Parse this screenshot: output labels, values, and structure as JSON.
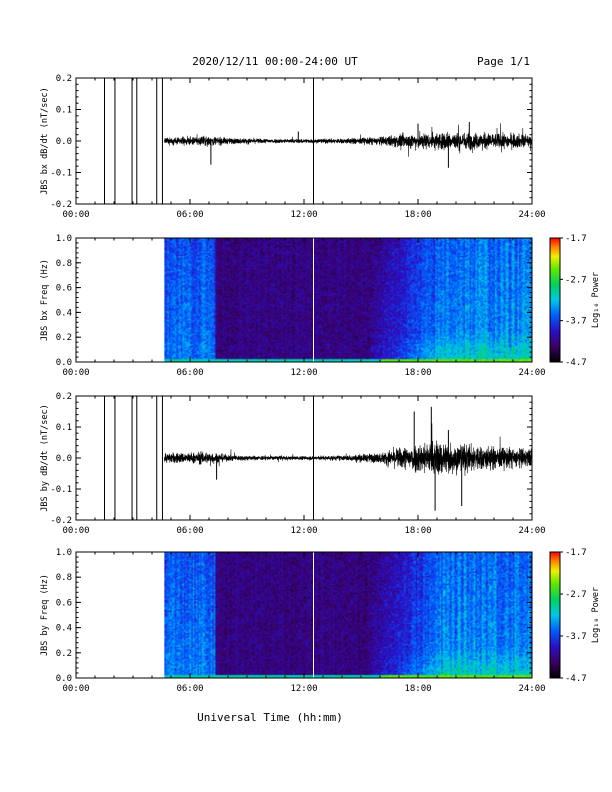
{
  "header": {
    "title": "2020/12/11  00:00-24:00 UT",
    "page": "Page 1/1"
  },
  "xlabel": "Universal Time (hh:mm)",
  "chart_data": [
    {
      "type": "line",
      "ylabel": "JBS bx dB/dt (nT/sec)",
      "xlim": [
        0,
        24
      ],
      "ylim": [
        -0.2,
        0.2
      ],
      "x_ticks": [
        "00:00",
        "06:00",
        "12:00",
        "18:00",
        "24:00"
      ],
      "y_ticks": [
        "0.2",
        "0.1",
        "0.0",
        "-0.1",
        "-0.2"
      ],
      "gaps_hours": [
        1.5,
        2.05,
        2.95,
        3.2,
        4.25,
        4.55,
        12.5
      ],
      "data_start_hour": 4.65,
      "envelope": {
        "hours": [
          4.65,
          6,
          7,
          8,
          10,
          12,
          14,
          16,
          17,
          18,
          19,
          20,
          22,
          23,
          24
        ],
        "amplitude": [
          0.012,
          0.015,
          0.02,
          0.012,
          0.009,
          0.008,
          0.01,
          0.016,
          0.025,
          0.03,
          0.035,
          0.035,
          0.03,
          0.028,
          0.025
        ]
      },
      "spikes": [
        {
          "hour": 7.1,
          "value": -0.075
        },
        {
          "hour": 11.7,
          "value": 0.03
        },
        {
          "hour": 18.0,
          "value": 0.055
        },
        {
          "hour": 19.6,
          "value": -0.085
        },
        {
          "hour": 20.7,
          "value": 0.06
        }
      ]
    },
    {
      "type": "heatmap",
      "ylabel": "JBS bx Freq (Hz)",
      "xlim": [
        0,
        24
      ],
      "ylim": [
        0,
        1
      ],
      "x_ticks": [
        "00:00",
        "06:00",
        "12:00",
        "18:00",
        "24:00"
      ],
      "y_ticks": [
        "1.0",
        "0.8",
        "0.6",
        "0.4",
        "0.2",
        "0.0"
      ],
      "data_start_hour": 4.65,
      "colorbar": {
        "label": "Log₁₀ Power",
        "ticks": [
          "-1.7",
          "-2.7",
          "-3.7",
          "-4.7"
        ],
        "range": [
          -4.7,
          -1.7
        ]
      }
    },
    {
      "type": "line",
      "ylabel": "JBS by dB/dt (nT/sec)",
      "xlim": [
        0,
        24
      ],
      "ylim": [
        -0.2,
        0.2
      ],
      "x_ticks": [
        "00:00",
        "06:00",
        "12:00",
        "18:00",
        "24:00"
      ],
      "y_ticks": [
        "0.2",
        "0.1",
        "0.0",
        "-0.1",
        "-0.2"
      ],
      "gaps_hours": [
        1.5,
        2.05,
        2.95,
        3.2,
        4.25,
        4.55,
        12.5
      ],
      "data_start_hour": 4.65,
      "envelope": {
        "hours": [
          4.65,
          6,
          7,
          8,
          10,
          12,
          14,
          16,
          17,
          18,
          19,
          20,
          22,
          23,
          24
        ],
        "amplitude": [
          0.02,
          0.022,
          0.025,
          0.012,
          0.008,
          0.008,
          0.01,
          0.02,
          0.04,
          0.06,
          0.07,
          0.06,
          0.045,
          0.04,
          0.035
        ]
      },
      "spikes": [
        {
          "hour": 7.4,
          "value": -0.07
        },
        {
          "hour": 17.8,
          "value": 0.15
        },
        {
          "hour": 18.7,
          "value": 0.165
        },
        {
          "hour": 18.9,
          "value": -0.17
        },
        {
          "hour": 19.6,
          "value": 0.09
        },
        {
          "hour": 20.3,
          "value": -0.155
        }
      ]
    },
    {
      "type": "heatmap",
      "ylabel": "JBS by Freq (Hz)",
      "xlim": [
        0,
        24
      ],
      "ylim": [
        0,
        1
      ],
      "x_ticks": [
        "00:00",
        "06:00",
        "12:00",
        "18:00",
        "24:00"
      ],
      "y_ticks": [
        "1.0",
        "0.8",
        "0.6",
        "0.4",
        "0.2",
        "0.0"
      ],
      "data_start_hour": 4.65,
      "colorbar": {
        "label": "Log₁₀ Power",
        "ticks": [
          "-1.7",
          "-2.7",
          "-3.7",
          "-4.7"
        ],
        "range": [
          -4.7,
          -1.7
        ]
      }
    }
  ]
}
